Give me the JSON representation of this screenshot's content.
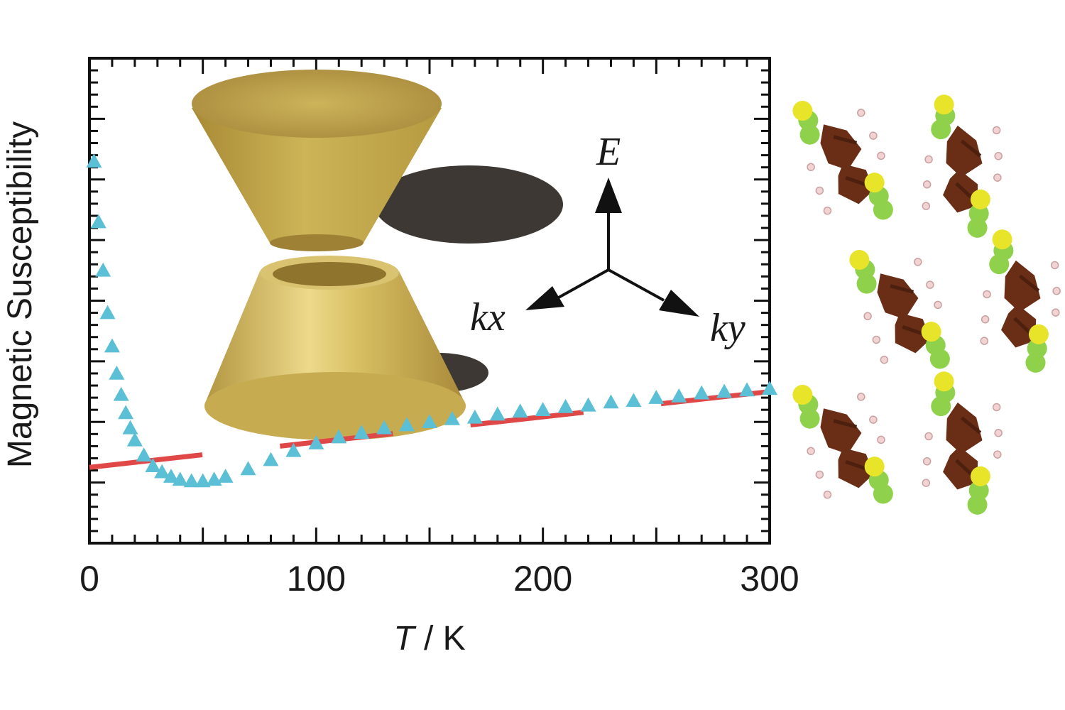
{
  "chart_data": {
    "type": "scatter",
    "xlabel_var": "T",
    "xlabel_unit": " / K",
    "ylabel": "Magnetic Susceptibility",
    "xlim": [
      0,
      300
    ],
    "ylim": [
      0,
      16
    ],
    "xticks": [
      0,
      100,
      200,
      300
    ],
    "y_tick_labels_shown": false,
    "grid": false,
    "series": [
      {
        "marker": "triangle",
        "color": "#5bbfd6",
        "x": [
          2,
          4,
          6,
          8,
          10,
          12,
          14,
          16,
          18,
          20,
          24,
          28,
          32,
          36,
          40,
          45,
          50,
          55,
          60,
          70,
          80,
          90,
          100,
          110,
          120,
          130,
          140,
          150,
          160,
          170,
          180,
          190,
          200,
          210,
          220,
          230,
          240,
          250,
          260,
          270,
          280,
          290,
          300
        ],
        "y": [
          12.6,
          10.6,
          9.0,
          7.6,
          6.5,
          5.6,
          4.9,
          4.3,
          3.8,
          3.4,
          2.9,
          2.55,
          2.35,
          2.2,
          2.1,
          2.05,
          2.05,
          2.1,
          2.2,
          2.45,
          2.75,
          3.05,
          3.3,
          3.5,
          3.65,
          3.8,
          3.9,
          4.0,
          4.1,
          4.15,
          4.25,
          4.35,
          4.4,
          4.5,
          4.55,
          4.65,
          4.7,
          4.8,
          4.85,
          4.95,
          5.0,
          5.05,
          5.1
        ]
      },
      {
        "marker": "dashed-line",
        "color": "#e04848",
        "x": [
          0,
          300
        ],
        "y": [
          2.5,
          5.0
        ]
      }
    ]
  },
  "inset": {
    "axis_e": "E",
    "axis_kx_base": "k",
    "axis_kx_sub": "x",
    "axis_ky_base": "k",
    "axis_ky_sub": "y",
    "cone_color": "#c9ae4f",
    "shadow_color": "#3d3833"
  },
  "molecules": {
    "carbon_color": "#6a2e17",
    "sulfur_color": "#e8e42a",
    "selenium_color": "#8fd14a",
    "hydrogen_color": "#f2d3d3"
  }
}
